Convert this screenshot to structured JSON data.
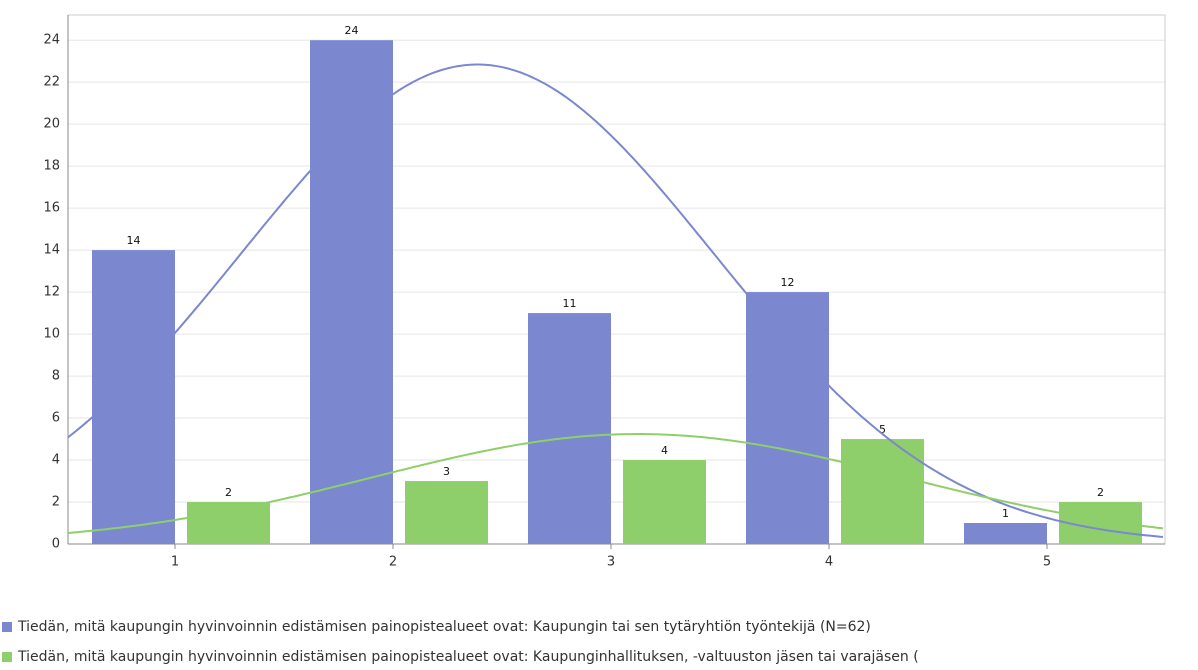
{
  "chart_data": {
    "type": "bar",
    "categories": [
      "1",
      "2",
      "3",
      "4",
      "5"
    ],
    "series": [
      {
        "name": "Tiedän, mitä kaupungin hyvinvoinnin edistämisen painopistealueet ovat: Kaupungin tai sen tytäryhtiön työntekijä (N=62)",
        "color": "#7b88cf",
        "values": [
          14,
          24,
          11,
          12,
          1
        ]
      },
      {
        "name": "Tiedän, mitä kaupungin hyvinvoinnin edistämisen painopistealueet ovat: Kaupunginhallituksen, -valtuuston jäsen tai varajäsen (",
        "color": "#8fcf6b",
        "values": [
          2,
          3,
          4,
          5,
          2
        ]
      }
    ],
    "ylim": [
      0,
      25.2
    ],
    "yticks": [
      0,
      2,
      4,
      6,
      8,
      10,
      12,
      14,
      16,
      18,
      20,
      22,
      24
    ],
    "grid": true
  }
}
